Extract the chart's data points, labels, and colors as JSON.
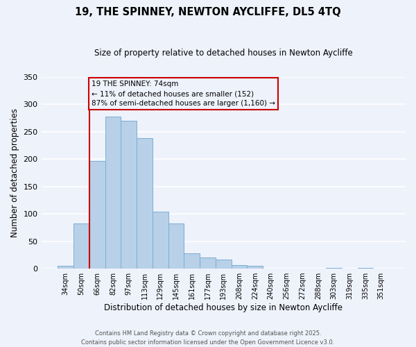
{
  "title": "19, THE SPINNEY, NEWTON AYCLIFFE, DL5 4TQ",
  "subtitle": "Size of property relative to detached houses in Newton Aycliffe",
  "xlabel": "Distribution of detached houses by size in Newton Aycliffe",
  "ylabel": "Number of detached properties",
  "categories": [
    "34sqm",
    "50sqm",
    "66sqm",
    "82sqm",
    "97sqm",
    "113sqm",
    "129sqm",
    "145sqm",
    "161sqm",
    "177sqm",
    "193sqm",
    "208sqm",
    "224sqm",
    "240sqm",
    "256sqm",
    "272sqm",
    "288sqm",
    "303sqm",
    "319sqm",
    "335sqm",
    "351sqm"
  ],
  "values": [
    5,
    83,
    196,
    277,
    270,
    238,
    104,
    83,
    28,
    20,
    16,
    7,
    5,
    0,
    0,
    0,
    0,
    2,
    0,
    2,
    0
  ],
  "bar_color": "#b8d0e8",
  "bar_edge_color": "#7aafd4",
  "vline_x": 1.5,
  "vline_color": "#cc0000",
  "annotation_title": "19 THE SPINNEY: 74sqm",
  "annotation_line1": "← 11% of detached houses are smaller (152)",
  "annotation_line2": "87% of semi-detached houses are larger (1,160) →",
  "annotation_box_color": "#cc0000",
  "ylim": [
    0,
    350
  ],
  "yticks": [
    0,
    50,
    100,
    150,
    200,
    250,
    300,
    350
  ],
  "footnote1": "Contains HM Land Registry data © Crown copyright and database right 2025.",
  "footnote2": "Contains public sector information licensed under the Open Government Licence v3.0.",
  "bg_color": "#eef2fb",
  "grid_color": "#ffffff"
}
